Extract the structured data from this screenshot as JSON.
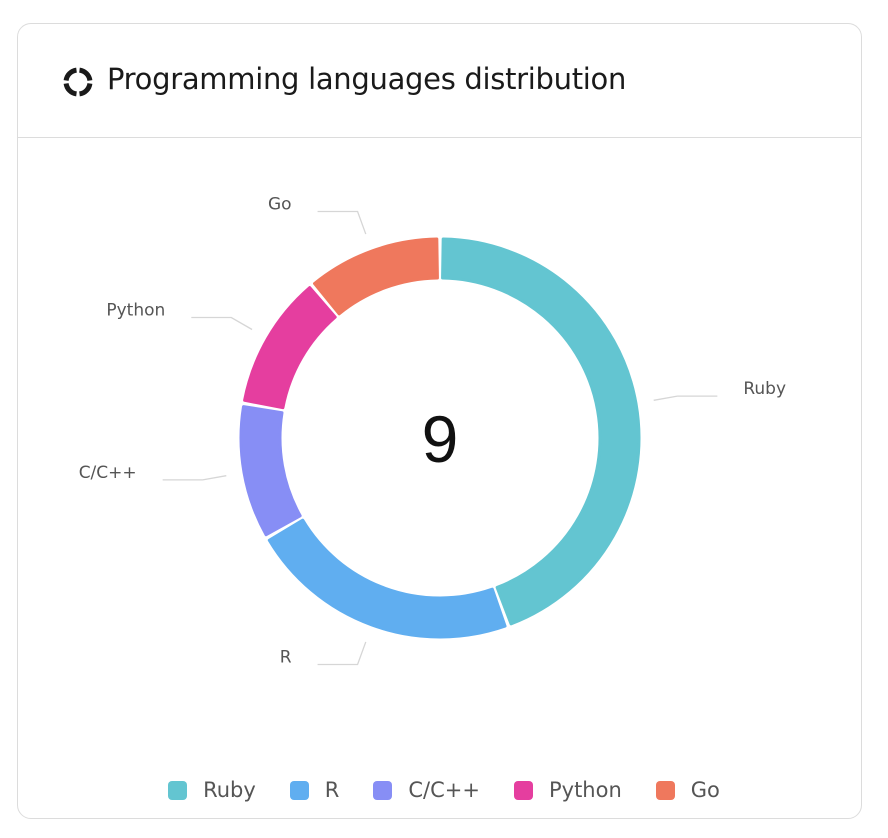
{
  "header": {
    "title": "Programming languages distribution",
    "icon": "donut-chart-icon"
  },
  "chart_data": {
    "type": "pie",
    "variant": "donut",
    "center_label": "9",
    "categories": [
      "Ruby",
      "R",
      "C/C++",
      "Python",
      "Go"
    ],
    "values": [
      4,
      2,
      1,
      1,
      1
    ],
    "colors": [
      "#63c5d1",
      "#60aef0",
      "#878ef5",
      "#e53e9f",
      "#ef785d"
    ],
    "legend_position": "bottom"
  }
}
